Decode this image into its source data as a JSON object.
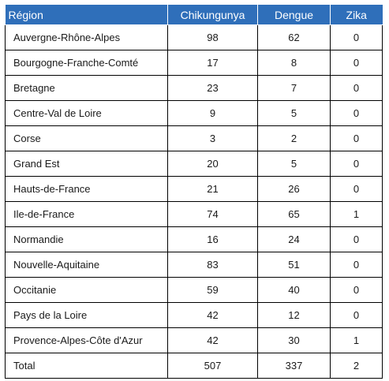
{
  "table": {
    "headers": [
      "Région",
      "Chikungunya",
      "Dengue",
      "Zika"
    ],
    "rows": [
      [
        "Auvergne-Rhône-Alpes",
        "98",
        "62",
        "0"
      ],
      [
        "Bourgogne-Franche-Comté",
        "17",
        "8",
        "0"
      ],
      [
        "Bretagne",
        "23",
        "7",
        "0"
      ],
      [
        "Centre-Val de Loire",
        "9",
        "5",
        "0"
      ],
      [
        "Corse",
        "3",
        "2",
        "0"
      ],
      [
        "Grand Est",
        "20",
        "5",
        "0"
      ],
      [
        "Hauts-de-France",
        "21",
        "26",
        "0"
      ],
      [
        "Ile-de-France",
        "74",
        "65",
        "1"
      ],
      [
        "Normandie",
        "16",
        "24",
        "0"
      ],
      [
        "Nouvelle-Aquitaine",
        "83",
        "51",
        "0"
      ],
      [
        "Occitanie",
        "59",
        "40",
        "0"
      ],
      [
        "Pays de la Loire",
        "42",
        "12",
        "0"
      ],
      [
        "Provence-Alpes-Côte d'Azur",
        "42",
        "30",
        "1"
      ],
      [
        "Total",
        "507",
        "337",
        "2"
      ]
    ]
  },
  "colors": {
    "header_background": "#2f6fba",
    "header_text": "#ffffff",
    "border": "#000000"
  }
}
